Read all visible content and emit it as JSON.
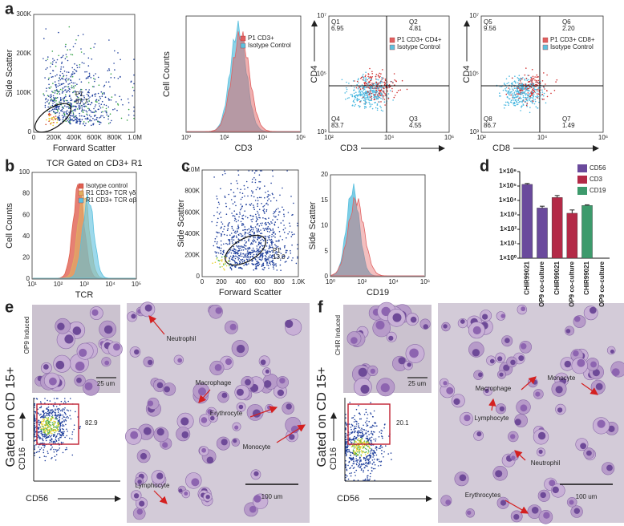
{
  "panels": [
    "a",
    "b",
    "c",
    "d",
    "e",
    "f"
  ],
  "a": {
    "fsc_ssc": {
      "y_label": "Side Scatter",
      "x_label": "Forward Scatter",
      "yticks": [
        "0",
        "100K",
        "200K",
        "300K"
      ],
      "xticks": [
        "0",
        "200K",
        "400K",
        "600K",
        "800K",
        "1.0M"
      ],
      "gate": "P1",
      "gate_value": "87.7"
    },
    "cd3_hist": {
      "y_label": "Cell Counts",
      "x_label": "CD3",
      "xticks": [
        "10⁰",
        "10²",
        "10⁴",
        "10⁶"
      ],
      "legend": [
        "P1 CD3+",
        "Isotype Control"
      ]
    },
    "cd4_cd3": {
      "y_label": "CD4",
      "x_label": "CD3",
      "xticks": [
        "10²",
        "10⁴",
        "10⁶"
      ],
      "yticks": [
        "10³",
        "10⁵",
        "10⁷"
      ],
      "quadrants": [
        {
          "name": "Q1",
          "value": "6.95"
        },
        {
          "name": "Q2",
          "value": "4.81"
        },
        {
          "name": "Q4",
          "value": "83.7"
        },
        {
          "name": "Q3",
          "value": "4.55"
        }
      ],
      "legend": [
        "P1 CD3+ CD4+",
        "Isotype Control"
      ]
    },
    "cd4_cd8": {
      "y_label": "CD4",
      "x_label": "CD8",
      "xticks": [
        "10²",
        "10⁴",
        "10⁶"
      ],
      "yticks": [
        "10³",
        "10⁵",
        "10⁷"
      ],
      "quadrants": [
        {
          "name": "Q5",
          "value": "9.56"
        },
        {
          "name": "Q6",
          "value": "2.20"
        },
        {
          "name": "Q8",
          "value": "86.7"
        },
        {
          "name": "Q7",
          "value": "1.49"
        }
      ],
      "legend": [
        "P1 CD3+ CD8+",
        "Isotype Control"
      ]
    }
  },
  "b": {
    "title": "TCR Gated on CD3+ R1",
    "y_label": "Cell Counts",
    "x_label": "TCR",
    "yticks": [
      "0",
      "20",
      "40",
      "60",
      "80",
      "100"
    ],
    "xticks": [
      "10¹",
      "10²",
      "10³",
      "10⁴",
      "10⁵"
    ],
    "legend": [
      "Isotype control",
      "R1 CD3+ TCR γδ",
      "R1 CD3+ TCR αβ"
    ]
  },
  "c": {
    "fsc_ssc": {
      "y_label": "Side Scatter",
      "x_label": "Forward Scatter",
      "yticks": [
        "0",
        "200K",
        "400K",
        "600K",
        "800K",
        "1.0M"
      ],
      "xticks": [
        "0",
        "200",
        "400",
        "600",
        "800",
        "1.0K"
      ],
      "gate": "P1",
      "gate_value": "13.0"
    },
    "cd19_hist": {
      "y_label": "Side Scatter",
      "x_label": "CD19",
      "yticks": [
        "0",
        "5",
        "10",
        "15",
        "20"
      ],
      "xticks": [
        "10⁰",
        "10²",
        "10⁴",
        "10⁶"
      ]
    }
  },
  "chart_data": {
    "type": "bar",
    "categories": [
      "CHIR99021",
      "OP9 co-culture",
      "CHIR99021",
      "OP9 co-culture",
      "CHIR99021",
      "OP9 co-culture"
    ],
    "log_scale": true,
    "ylim": [
      1,
      1000000
    ],
    "yticks": [
      {
        "value": 1,
        "label": "1×10⁰"
      },
      {
        "value": 10,
        "label": "1×10¹"
      },
      {
        "value": 100,
        "label": "1×10²"
      },
      {
        "value": 1000,
        "label": "1×10³"
      },
      {
        "value": 10000,
        "label": "1×10⁴"
      },
      {
        "value": 100000,
        "label": "1×10⁵"
      },
      {
        "value": 1000000,
        "label": "1×10⁶"
      }
    ],
    "legend": "upper right",
    "series": [
      {
        "name": "CD56",
        "color": "#6a4a9c",
        "values": [
          130000,
          3000,
          null,
          null,
          null,
          null
        ],
        "errors": [
          20000,
          1000,
          null,
          null,
          null,
          null
        ]
      },
      {
        "name": "CD3",
        "color": "#b32a47",
        "values": [
          null,
          null,
          16000,
          1300,
          null,
          null
        ],
        "errors": [
          null,
          null,
          6000,
          900,
          null,
          null
        ]
      },
      {
        "name": "CD19",
        "color": "#3d9a6c",
        "values": [
          null,
          null,
          null,
          null,
          4500,
          null
        ],
        "errors": [
          null,
          null,
          null,
          null,
          500,
          null
        ]
      }
    ]
  },
  "e": {
    "side_label": "Gated on CD 15+",
    "inset_label": "OP9 Induced",
    "inset_scale": "25 um",
    "gate_value": "82.9",
    "y_label": "CD16",
    "x_label": "CD56",
    "cells": [
      "Neutrophil",
      "Macrophage",
      "Erythrocyte",
      "Monocyte",
      "Lymphocyte"
    ],
    "scale": "100 um"
  },
  "f": {
    "side_label": "Gated on CD 15+",
    "inset_label": "CHIR Induced",
    "inset_scale": "25 um",
    "gate_value": "20.1",
    "y_label": "CD16",
    "x_label": "CD56",
    "cells": [
      "Macrophage",
      "Monocyte",
      "Lymphocyte",
      "Neutrophil",
      "Erythrocytes"
    ],
    "scale": "100 um"
  }
}
